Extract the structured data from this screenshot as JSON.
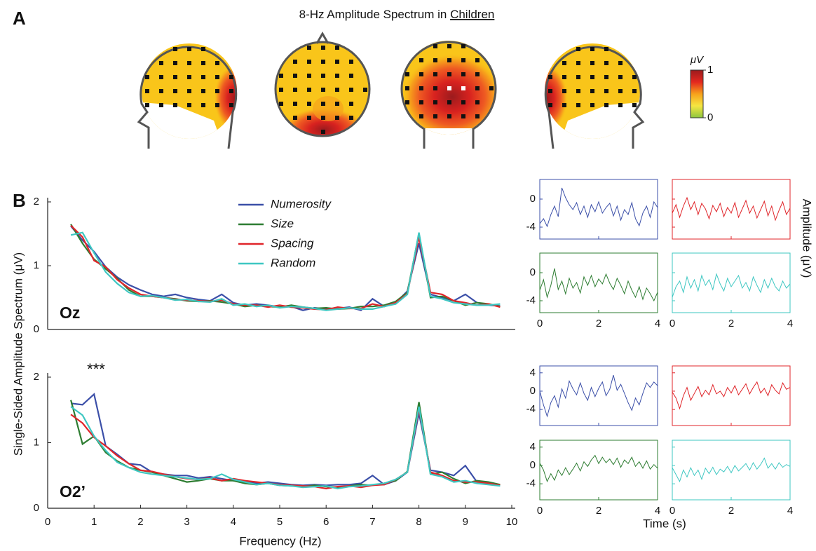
{
  "panel_labels": [
    "A",
    "B"
  ],
  "chart_data": [
    {
      "type": "topomap",
      "title": "8-Hz Amplitude Spectrum in",
      "title_underlined": "Children",
      "colorbar": {
        "label": "μV",
        "lim": [
          0,
          1
        ],
        "ticks": [
          0,
          1
        ],
        "colors": [
          "#8dc63f",
          "#f5e642",
          "#f7a21b",
          "#e4281f",
          "#9b1b1e"
        ]
      }
    },
    {
      "type": "line",
      "label": "Oz",
      "ylabel": "Single-Sided Amplitude Spectrum (μV)",
      "x": [
        0.5,
        0.75,
        1,
        1.25,
        1.5,
        1.75,
        2,
        2.25,
        2.5,
        2.75,
        3,
        3.25,
        3.5,
        3.75,
        4,
        4.25,
        4.5,
        4.75,
        5,
        5.25,
        5.5,
        5.75,
        6,
        6.25,
        6.5,
        6.75,
        7,
        7.25,
        7.5,
        7.75,
        8,
        8.25,
        8.5,
        8.75,
        9,
        9.25,
        9.5,
        9.75
      ],
      "xlim": [
        0,
        10
      ],
      "ylim": [
        0,
        2
      ],
      "yticks": [
        0,
        1,
        2
      ],
      "series": [
        {
          "name": "Numerosity",
          "color": "#3b4fa8",
          "values": [
            1.62,
            1.4,
            1.22,
            0.98,
            0.82,
            0.7,
            0.62,
            0.55,
            0.52,
            0.55,
            0.5,
            0.47,
            0.45,
            0.55,
            0.42,
            0.38,
            0.4,
            0.38,
            0.35,
            0.36,
            0.3,
            0.34,
            0.32,
            0.33,
            0.35,
            0.3,
            0.48,
            0.36,
            0.42,
            0.6,
            1.35,
            0.55,
            0.5,
            0.45,
            0.55,
            0.42,
            0.38,
            0.37
          ]
        },
        {
          "name": "Size",
          "color": "#2e7d32",
          "values": [
            1.65,
            1.35,
            1.1,
            0.95,
            0.8,
            0.62,
            0.52,
            0.52,
            0.5,
            0.48,
            0.45,
            0.44,
            0.45,
            0.43,
            0.4,
            0.36,
            0.38,
            0.36,
            0.35,
            0.38,
            0.35,
            0.33,
            0.34,
            0.32,
            0.33,
            0.36,
            0.36,
            0.38,
            0.44,
            0.58,
            1.5,
            0.5,
            0.52,
            0.45,
            0.38,
            0.42,
            0.4,
            0.36
          ]
        },
        {
          "name": "Spacing",
          "color": "#e0252a",
          "values": [
            1.63,
            1.45,
            1.08,
            0.98,
            0.78,
            0.65,
            0.55,
            0.52,
            0.5,
            0.47,
            0.46,
            0.45,
            0.44,
            0.46,
            0.4,
            0.38,
            0.38,
            0.35,
            0.38,
            0.35,
            0.34,
            0.32,
            0.31,
            0.35,
            0.33,
            0.33,
            0.4,
            0.36,
            0.42,
            0.56,
            1.45,
            0.58,
            0.55,
            0.45,
            0.42,
            0.38,
            0.4,
            0.35
          ]
        },
        {
          "name": "Random",
          "color": "#3ec7c2",
          "values": [
            1.48,
            1.52,
            1.2,
            0.9,
            0.72,
            0.58,
            0.52,
            0.53,
            0.5,
            0.46,
            0.47,
            0.44,
            0.43,
            0.48,
            0.38,
            0.4,
            0.36,
            0.38,
            0.34,
            0.36,
            0.35,
            0.33,
            0.3,
            0.32,
            0.34,
            0.32,
            0.32,
            0.36,
            0.4,
            0.55,
            1.52,
            0.52,
            0.48,
            0.42,
            0.4,
            0.38,
            0.38,
            0.4
          ]
        }
      ]
    },
    {
      "type": "line",
      "label": "O2’",
      "annotation": "***",
      "xlabel": "Frequency (Hz)",
      "x": [
        0.5,
        0.75,
        1,
        1.25,
        1.5,
        1.75,
        2,
        2.25,
        2.5,
        2.75,
        3,
        3.25,
        3.5,
        3.75,
        4,
        4.25,
        4.5,
        4.75,
        5,
        5.25,
        5.5,
        5.75,
        6,
        6.25,
        6.5,
        6.75,
        7,
        7.25,
        7.5,
        7.75,
        8,
        8.25,
        8.5,
        8.75,
        9,
        9.25,
        9.5,
        9.75
      ],
      "xlim": [
        0,
        10
      ],
      "ylim": [
        0,
        2
      ],
      "xticks": [
        0,
        1,
        2,
        3,
        4,
        5,
        6,
        7,
        8,
        9,
        10
      ],
      "yticks": [
        0,
        1,
        2
      ],
      "series": [
        {
          "color": "#3b4fa8",
          "values": [
            1.6,
            1.58,
            1.74,
            0.95,
            0.82,
            0.68,
            0.66,
            0.55,
            0.52,
            0.5,
            0.5,
            0.46,
            0.48,
            0.45,
            0.42,
            0.4,
            0.38,
            0.4,
            0.38,
            0.36,
            0.35,
            0.36,
            0.35,
            0.36,
            0.36,
            0.38,
            0.5,
            0.36,
            0.42,
            0.55,
            1.45,
            0.58,
            0.55,
            0.5,
            0.65,
            0.4,
            0.38,
            0.36
          ]
        },
        {
          "color": "#2e7d32",
          "values": [
            1.65,
            0.98,
            1.1,
            0.85,
            0.72,
            0.62,
            0.58,
            0.55,
            0.5,
            0.45,
            0.4,
            0.42,
            0.45,
            0.42,
            0.42,
            0.38,
            0.36,
            0.38,
            0.35,
            0.34,
            0.33,
            0.35,
            0.33,
            0.32,
            0.34,
            0.36,
            0.35,
            0.38,
            0.42,
            0.56,
            1.62,
            0.52,
            0.55,
            0.45,
            0.38,
            0.42,
            0.4,
            0.36
          ]
        },
        {
          "color": "#e0252a",
          "values": [
            1.43,
            1.3,
            1.08,
            0.95,
            0.8,
            0.68,
            0.58,
            0.56,
            0.52,
            0.48,
            0.45,
            0.44,
            0.46,
            0.42,
            0.45,
            0.42,
            0.4,
            0.38,
            0.36,
            0.35,
            0.34,
            0.33,
            0.3,
            0.33,
            0.34,
            0.32,
            0.35,
            0.36,
            0.44,
            0.55,
            1.52,
            0.55,
            0.5,
            0.42,
            0.4,
            0.4,
            0.38,
            0.35
          ]
        },
        {
          "color": "#3ec7c2",
          "values": [
            1.55,
            1.42,
            1.1,
            0.88,
            0.7,
            0.62,
            0.55,
            0.52,
            0.5,
            0.48,
            0.46,
            0.44,
            0.45,
            0.52,
            0.44,
            0.4,
            0.36,
            0.38,
            0.35,
            0.34,
            0.32,
            0.33,
            0.34,
            0.3,
            0.33,
            0.34,
            0.36,
            0.38,
            0.44,
            0.55,
            1.55,
            0.52,
            0.48,
            0.4,
            0.42,
            0.38,
            0.36,
            0.34
          ]
        }
      ]
    },
    {
      "type": "timeseries",
      "ylabel": "Amplitude (μV)",
      "x": [
        0,
        0.125,
        0.25,
        0.375,
        0.5,
        0.625,
        0.75,
        0.875,
        1,
        1.125,
        1.25,
        1.375,
        1.5,
        1.625,
        1.75,
        1.875,
        2,
        2.125,
        2.25,
        2.375,
        2.5,
        2.625,
        2.75,
        2.875,
        3,
        3.125,
        3.25,
        3.375,
        3.5,
        3.625,
        3.75,
        3.875,
        4
      ],
      "xlim": [
        0,
        4
      ],
      "xticks": [
        0,
        2,
        4
      ],
      "ylim": [
        -5.7,
        2.8
      ],
      "yticks": [
        -4,
        0
      ],
      "series": [
        {
          "color": "#3b4fa8",
          "values": [
            -3.5,
            -2.8,
            -3.9,
            -2.2,
            -1.0,
            -2.5,
            1.6,
            0.2,
            -0.8,
            -1.5,
            -0.5,
            -2.2,
            -1.0,
            -2.6,
            -0.8,
            -1.8,
            -0.4,
            -2.0,
            -1.2,
            -0.6,
            -2.4,
            -1.0,
            -3.0,
            -1.5,
            -2.2,
            -0.5,
            -2.8,
            -3.8,
            -2.0,
            -1.0,
            -2.6,
            -0.4,
            -1.2
          ]
        },
        {
          "color": "#e0252a",
          "values": [
            -2.0,
            -0.8,
            -2.6,
            -1.0,
            0.2,
            -1.5,
            -0.4,
            -2.2,
            -0.6,
            -1.4,
            -2.8,
            -0.9,
            -1.8,
            -0.6,
            -2.5,
            -1.2,
            -2.0,
            -0.5,
            -2.6,
            -1.4,
            -0.2,
            -2.0,
            -1.0,
            -2.7,
            -1.5,
            -0.3,
            -2.4,
            -1.0,
            -3.0,
            -1.6,
            -0.4,
            -2.2,
            -1.3
          ]
        },
        {
          "color": "#2e7d32",
          "values": [
            -2.5,
            -1.0,
            -3.5,
            -1.8,
            0.6,
            -2.4,
            -1.2,
            -3.0,
            -0.8,
            -2.2,
            -1.4,
            -2.9,
            -0.6,
            -1.8,
            -0.4,
            -2.0,
            -0.9,
            -1.6,
            -0.2,
            -1.5,
            -2.4,
            -0.8,
            -1.8,
            -3.0,
            -1.2,
            -2.5,
            -3.5,
            -2.0,
            -3.8,
            -2.2,
            -3.0,
            -4.0,
            -2.8
          ]
        },
        {
          "color": "#3ec7c2",
          "values": [
            -3.5,
            -2.0,
            -1.2,
            -2.8,
            -0.6,
            -2.2,
            -1.0,
            -2.6,
            -0.4,
            -1.8,
            -1.0,
            -2.4,
            -0.2,
            -1.6,
            -2.6,
            -0.8,
            -2.0,
            -1.2,
            -0.4,
            -2.2,
            -1.4,
            -2.6,
            -0.6,
            -1.8,
            -2.8,
            -1.0,
            -2.2,
            -0.8,
            -2.0,
            -2.6,
            -1.2,
            -2.2,
            -1.6
          ]
        }
      ]
    },
    {
      "type": "timeseries",
      "xlabel": "Time (s)",
      "x": [
        0,
        0.125,
        0.25,
        0.375,
        0.5,
        0.625,
        0.75,
        0.875,
        1,
        1.125,
        1.25,
        1.375,
        1.5,
        1.625,
        1.75,
        1.875,
        2,
        2.125,
        2.25,
        2.375,
        2.5,
        2.625,
        2.75,
        2.875,
        3,
        3.125,
        3.25,
        3.375,
        3.5,
        3.625,
        3.75,
        3.875,
        4
      ],
      "xlim": [
        0,
        4
      ],
      "xticks": [
        0,
        2,
        4
      ],
      "ylim": [
        -7.5,
        5.5
      ],
      "yticks": [
        -4,
        0,
        4
      ],
      "series": [
        {
          "color": "#3b4fa8",
          "values": [
            0,
            -3,
            -5.5,
            -2.5,
            -1.0,
            -3.5,
            0.5,
            -1.5,
            2.2,
            0.5,
            -0.8,
            1.8,
            -0.5,
            -2.0,
            0.8,
            -1.2,
            0.6,
            2.0,
            -1.0,
            0.4,
            3.5,
            0.2,
            1.5,
            -0.5,
            -2.5,
            -4.2,
            -1.5,
            -3.0,
            -0.5,
            1.8,
            0.8,
            2.0,
            1.2
          ]
        },
        {
          "color": "#e0252a",
          "values": [
            -0.2,
            -1.5,
            -3.8,
            -1.0,
            0.8,
            -2.0,
            -0.5,
            1.0,
            -1.2,
            0.2,
            -0.8,
            1.4,
            -0.6,
            0.0,
            -1.2,
            0.8,
            -0.4,
            1.2,
            -0.8,
            0.4,
            1.6,
            -0.6,
            0.8,
            2.0,
            -0.4,
            0.6,
            -1.0,
            1.4,
            0.2,
            -0.6,
            1.8,
            0.4,
            0.8
          ]
        },
        {
          "color": "#2e7d32",
          "values": [
            0.5,
            -1.0,
            -3.5,
            -1.8,
            -3.2,
            -1.0,
            -2.2,
            -0.5,
            -2.0,
            -0.8,
            0.5,
            -1.2,
            0.8,
            -0.2,
            1.2,
            2.2,
            0.4,
            1.8,
            0.6,
            1.4,
            0.2,
            1.6,
            -0.4,
            1.2,
            0.4,
            1.8,
            -0.2,
            0.8,
            -0.6,
            1.0,
            -0.8,
            0.2,
            -0.6
          ]
        },
        {
          "color": "#3ec7c2",
          "values": [
            -0.5,
            -2.0,
            -3.5,
            -1.0,
            -2.5,
            -0.5,
            -2.2,
            -1.0,
            -3.0,
            -0.6,
            -1.8,
            -0.4,
            -2.0,
            -0.8,
            -1.4,
            -0.2,
            -1.6,
            0.0,
            -1.2,
            -0.4,
            0.4,
            -1.0,
            0.6,
            -0.8,
            0.2,
            1.6,
            -0.6,
            0.4,
            -0.8,
            0.6,
            -0.4,
            0.2,
            -0.2
          ]
        }
      ]
    }
  ]
}
